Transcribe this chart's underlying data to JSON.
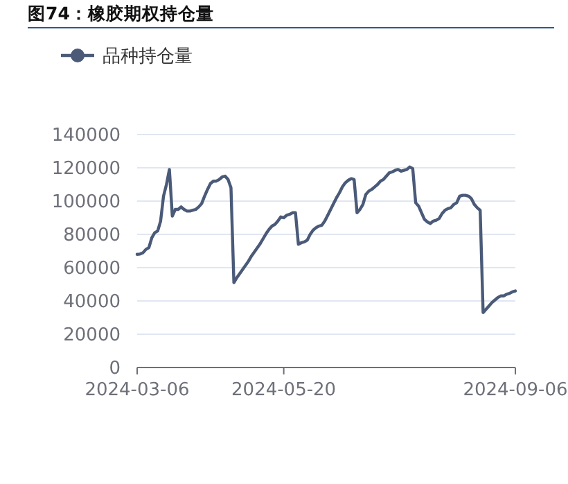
{
  "chart_data": {
    "type": "line",
    "title": "图74：橡胶期权持仓量",
    "legend": "top left",
    "grid": "y",
    "categories": [
      "2024-03-06",
      null,
      null,
      null,
      null,
      null,
      null,
      null,
      null,
      null,
      null,
      null,
      null,
      null,
      null,
      null,
      null,
      null,
      null,
      null,
      null,
      null,
      null,
      null,
      null,
      null,
      null,
      null,
      null,
      null,
      null,
      null,
      null,
      null,
      null,
      null,
      null,
      null,
      null,
      null,
      null,
      null,
      null,
      null,
      null,
      null,
      null,
      null,
      null,
      null,
      "2024-05-20",
      null,
      null,
      null,
      null,
      null,
      null,
      null,
      null,
      null,
      null,
      null,
      null,
      null,
      null,
      null,
      null,
      null,
      null,
      null,
      null,
      null,
      null,
      null,
      null,
      null,
      null,
      null,
      null,
      null,
      null,
      null,
      null,
      null,
      null,
      null,
      null,
      null,
      null,
      null,
      null,
      null,
      null,
      null,
      null,
      null,
      null,
      null,
      null,
      null,
      null,
      null,
      null,
      null,
      null,
      null,
      null,
      null,
      null,
      null,
      null,
      null,
      null,
      null,
      null,
      null,
      null,
      null,
      null,
      null,
      null,
      null,
      null,
      null,
      null,
      null,
      null,
      null,
      null,
      "2024-09-06"
    ],
    "ylim": [
      0,
      140000
    ],
    "yticks": [
      0,
      20000,
      40000,
      60000,
      80000,
      100000,
      120000,
      140000
    ],
    "series": [
      {
        "name": "品种持仓量",
        "color": "#4a5a78",
        "values": [
          68000,
          68200,
          69000,
          71000,
          72000,
          78000,
          81000,
          82000,
          88000,
          103000,
          110000,
          119000,
          91000,
          95000,
          95000,
          96500,
          95000,
          94000,
          94000,
          94500,
          95000,
          96500,
          98500,
          103000,
          107000,
          110500,
          112000,
          112000,
          113000,
          114500,
          115000,
          113000,
          108000,
          51000,
          54000,
          56500,
          59000,
          61500,
          64000,
          67000,
          69500,
          72000,
          74500,
          77500,
          80500,
          83000,
          85000,
          86000,
          88000,
          90500,
          90000,
          91500,
          92000,
          93000,
          93000,
          74000,
          75000,
          75500,
          76500,
          80000,
          82500,
          84000,
          85000,
          85500,
          88000,
          91500,
          95000,
          98500,
          102000,
          105000,
          108500,
          111000,
          112500,
          113500,
          113000,
          93000,
          95000,
          98000,
          104000,
          106000,
          107000,
          108500,
          110000,
          112000,
          113000,
          115000,
          117000,
          117500,
          118500,
          119000,
          118000,
          118500,
          119000,
          120500,
          119500,
          99000,
          97000,
          93000,
          89000,
          87500,
          86500,
          88000,
          88500,
          89500,
          92500,
          94500,
          95500,
          96000,
          98000,
          99000,
          103000,
          103500,
          103500,
          103000,
          101500,
          98000,
          96000,
          94500,
          33000,
          35000,
          37000,
          39000,
          40500,
          42000,
          43000,
          43000,
          44000,
          44500,
          45500,
          46000
        ]
      }
    ]
  }
}
